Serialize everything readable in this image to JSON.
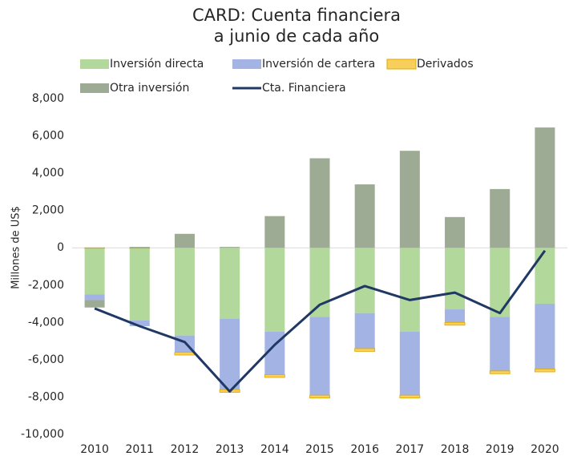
{
  "chart_data": {
    "type": "bar",
    "stacked": true,
    "title": [
      "CARD:  Cuenta financiera",
      "a junio de cada año"
    ],
    "ylabel": "Millones de US$",
    "categories": [
      "2010",
      "2011",
      "2012",
      "2013",
      "2014",
      "2015",
      "2016",
      "2017",
      "2018",
      "2019",
      "2020"
    ],
    "series": [
      {
        "name": "Inversión directa",
        "type": "bar",
        "color": "#b3d89c",
        "values": [
          -2500,
          -3900,
          -4700,
          -3800,
          -4500,
          -3700,
          -3500,
          -4500,
          -3300,
          -3700,
          -3000
        ]
      },
      {
        "name": "Inversión de cartera",
        "type": "bar",
        "color": "#a3b3e3",
        "values": [
          -300,
          -300,
          -900,
          -3800,
          -2300,
          -4200,
          -1900,
          -3400,
          -700,
          -2900,
          -3500
        ]
      },
      {
        "name": "Derivados",
        "type": "bar",
        "color": "#f7cf5a",
        "values": [
          0,
          0,
          -150,
          -150,
          -150,
          -150,
          -150,
          -150,
          -150,
          -150,
          -150
        ]
      },
      {
        "name": "Otra inversión",
        "type": "bar",
        "color": "#9eab94",
        "values": [
          -400,
          50,
          750,
          50,
          1700,
          4800,
          3400,
          5200,
          1650,
          3150,
          6450
        ]
      },
      {
        "name": "Cta. Financiera",
        "type": "line",
        "color": "#203864",
        "values": [
          -3250,
          -4200,
          -5050,
          -7700,
          -5200,
          -3050,
          -2050,
          -2800,
          -2400,
          -3500,
          -150
        ]
      }
    ],
    "ylim": [
      -10000,
      8000
    ],
    "yticks": [
      {
        "value": -10000,
        "label": "-10,000"
      },
      {
        "value": -8000,
        "label": "-8,000"
      },
      {
        "value": -6000,
        "label": "-6,000"
      },
      {
        "value": -4000,
        "label": "-4,000"
      },
      {
        "value": -2000,
        "label": "-2,000"
      },
      0,
      {
        "value": 2000,
        "label": "2,000"
      },
      {
        "value": 4000,
        "label": "4,000"
      },
      {
        "value": 6000,
        "label": "6,000"
      },
      {
        "value": 8000,
        "label": "8,000"
      }
    ],
    "grid": false,
    "legend": "top"
  }
}
